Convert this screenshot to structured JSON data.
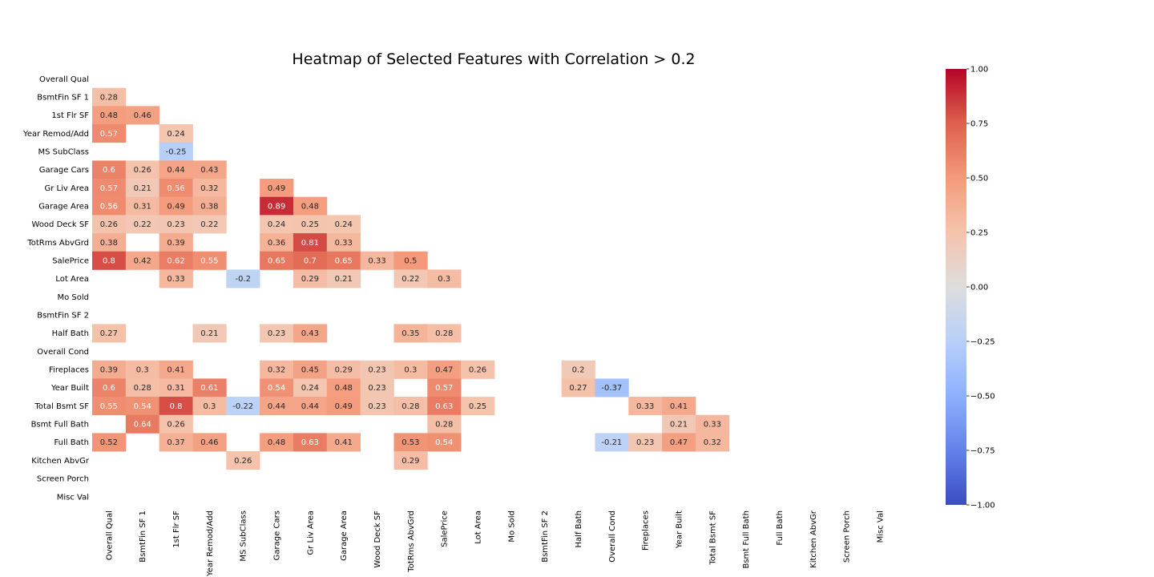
{
  "chart_data": {
    "type": "heatmap",
    "title": "Heatmap of Selected Features with Correlation > 0.2",
    "colormap": "coolwarm",
    "vmin": -1.0,
    "vmax": 1.0,
    "mask": "upper-triangle",
    "rows": [
      "Overall Qual",
      "BsmtFin SF 1",
      "1st Flr SF",
      "Year Remod/Add",
      "MS SubClass",
      "Garage Cars",
      "Gr Liv Area",
      "Garage Area",
      "Wood Deck SF",
      "TotRms AbvGrd",
      "SalePrice",
      "Lot Area",
      "Mo Sold",
      "BsmtFin SF 2",
      "Half Bath",
      "Overall Cond",
      "Fireplaces",
      "Year Built",
      "Total Bsmt SF",
      "Bsmt Full Bath",
      "Full Bath",
      "Kitchen AbvGr",
      "Screen Porch",
      "Misc Val"
    ],
    "columns": [
      "Overall Qual",
      "BsmtFin SF 1",
      "1st Flr SF",
      "Year Remod/Add",
      "MS SubClass",
      "Garage Cars",
      "Gr Liv Area",
      "Garage Area",
      "Wood Deck SF",
      "TotRms AbvGrd",
      "SalePrice",
      "Lot Area",
      "Mo Sold",
      "BsmtFin SF 2",
      "Half Bath",
      "Overall Cond",
      "Fireplaces",
      "Year Built",
      "Total Bsmt SF",
      "Bsmt Full Bath",
      "Full Bath",
      "Kitchen AbvGr",
      "Screen Porch",
      "Misc Val"
    ],
    "values": [
      [
        null,
        null,
        null,
        null,
        null,
        null,
        null,
        null,
        null,
        null,
        null,
        null,
        null,
        null,
        null,
        null,
        null,
        null,
        null,
        null,
        null,
        null,
        null,
        null
      ],
      [
        0.28,
        null,
        null,
        null,
        null,
        null,
        null,
        null,
        null,
        null,
        null,
        null,
        null,
        null,
        null,
        null,
        null,
        null,
        null,
        null,
        null,
        null,
        null,
        null
      ],
      [
        0.48,
        0.46,
        null,
        null,
        null,
        null,
        null,
        null,
        null,
        null,
        null,
        null,
        null,
        null,
        null,
        null,
        null,
        null,
        null,
        null,
        null,
        null,
        null,
        null
      ],
      [
        0.57,
        null,
        0.24,
        null,
        null,
        null,
        null,
        null,
        null,
        null,
        null,
        null,
        null,
        null,
        null,
        null,
        null,
        null,
        null,
        null,
        null,
        null,
        null,
        null
      ],
      [
        null,
        null,
        -0.25,
        null,
        null,
        null,
        null,
        null,
        null,
        null,
        null,
        null,
        null,
        null,
        null,
        null,
        null,
        null,
        null,
        null,
        null,
        null,
        null,
        null
      ],
      [
        0.6,
        0.26,
        0.44,
        0.43,
        null,
        null,
        null,
        null,
        null,
        null,
        null,
        null,
        null,
        null,
        null,
        null,
        null,
        null,
        null,
        null,
        null,
        null,
        null,
        null
      ],
      [
        0.57,
        0.21,
        0.56,
        0.32,
        null,
        0.49,
        null,
        null,
        null,
        null,
        null,
        null,
        null,
        null,
        null,
        null,
        null,
        null,
        null,
        null,
        null,
        null,
        null,
        null
      ],
      [
        0.56,
        0.31,
        0.49,
        0.38,
        null,
        0.89,
        0.48,
        null,
        null,
        null,
        null,
        null,
        null,
        null,
        null,
        null,
        null,
        null,
        null,
        null,
        null,
        null,
        null,
        null
      ],
      [
        0.26,
        0.22,
        0.23,
        0.22,
        null,
        0.24,
        0.25,
        0.24,
        null,
        null,
        null,
        null,
        null,
        null,
        null,
        null,
        null,
        null,
        null,
        null,
        null,
        null,
        null,
        null
      ],
      [
        0.38,
        null,
        0.39,
        null,
        null,
        0.36,
        0.81,
        0.33,
        null,
        null,
        null,
        null,
        null,
        null,
        null,
        null,
        null,
        null,
        null,
        null,
        null,
        null,
        null,
        null
      ],
      [
        0.8,
        0.42,
        0.62,
        0.55,
        null,
        0.65,
        0.7,
        0.65,
        0.33,
        0.5,
        null,
        null,
        null,
        null,
        null,
        null,
        null,
        null,
        null,
        null,
        null,
        null,
        null,
        null
      ],
      [
        null,
        null,
        0.33,
        null,
        -0.2,
        null,
        0.29,
        0.21,
        null,
        0.22,
        0.3,
        null,
        null,
        null,
        null,
        null,
        null,
        null,
        null,
        null,
        null,
        null,
        null,
        null
      ],
      [
        null,
        null,
        null,
        null,
        null,
        null,
        null,
        null,
        null,
        null,
        null,
        null,
        null,
        null,
        null,
        null,
        null,
        null,
        null,
        null,
        null,
        null,
        null,
        null
      ],
      [
        null,
        null,
        null,
        null,
        null,
        null,
        null,
        null,
        null,
        null,
        null,
        null,
        null,
        null,
        null,
        null,
        null,
        null,
        null,
        null,
        null,
        null,
        null,
        null
      ],
      [
        0.27,
        null,
        null,
        0.21,
        null,
        0.23,
        0.43,
        null,
        null,
        0.35,
        0.28,
        null,
        null,
        null,
        null,
        null,
        null,
        null,
        null,
        null,
        null,
        null,
        null,
        null
      ],
      [
        null,
        null,
        null,
        null,
        null,
        null,
        null,
        null,
        null,
        null,
        null,
        null,
        null,
        null,
        null,
        null,
        null,
        null,
        null,
        null,
        null,
        null,
        null,
        null
      ],
      [
        0.39,
        0.3,
        0.41,
        null,
        null,
        0.32,
        0.45,
        0.29,
        0.23,
        0.3,
        0.47,
        0.26,
        null,
        null,
        0.2,
        null,
        null,
        null,
        null,
        null,
        null,
        null,
        null,
        null
      ],
      [
        0.6,
        0.28,
        0.31,
        0.61,
        null,
        0.54,
        0.24,
        0.48,
        0.23,
        null,
        0.57,
        null,
        null,
        null,
        0.27,
        -0.37,
        null,
        null,
        null,
        null,
        null,
        null,
        null,
        null
      ],
      [
        0.55,
        0.54,
        0.8,
        0.3,
        -0.22,
        0.44,
        0.44,
        0.49,
        0.23,
        0.28,
        0.63,
        0.25,
        null,
        null,
        null,
        null,
        0.33,
        0.41,
        null,
        null,
        null,
        null,
        null,
        null
      ],
      [
        null,
        0.64,
        0.26,
        null,
        null,
        null,
        null,
        null,
        null,
        null,
        0.28,
        null,
        null,
        null,
        null,
        null,
        null,
        0.21,
        0.33,
        null,
        null,
        null,
        null,
        null
      ],
      [
        0.52,
        null,
        0.37,
        0.46,
        null,
        0.48,
        0.63,
        0.41,
        null,
        0.53,
        0.54,
        null,
        null,
        null,
        null,
        -0.21,
        0.23,
        0.47,
        0.32,
        null,
        null,
        null,
        null,
        null
      ],
      [
        null,
        null,
        null,
        null,
        0.26,
        null,
        null,
        null,
        null,
        0.29,
        null,
        null,
        null,
        null,
        null,
        null,
        null,
        null,
        null,
        null,
        null,
        null,
        null,
        null
      ],
      [
        null,
        null,
        null,
        null,
        null,
        null,
        null,
        null,
        null,
        null,
        null,
        null,
        null,
        null,
        null,
        null,
        null,
        null,
        null,
        null,
        null,
        null,
        null,
        null
      ],
      [
        null,
        null,
        null,
        null,
        null,
        null,
        null,
        null,
        null,
        null,
        null,
        null,
        null,
        null,
        null,
        null,
        null,
        null,
        null,
        null,
        null,
        null,
        null,
        null
      ]
    ],
    "colorbar": {
      "ticks": [
        1.0,
        0.75,
        0.5,
        0.25,
        0.0,
        -0.25,
        -0.5,
        -0.75,
        -1.0
      ],
      "tick_labels": [
        "1.00",
        "0.75",
        "0.50",
        "0.25",
        "0.00",
        "−0.25",
        "−0.50",
        "−0.75",
        "−1.00"
      ]
    }
  }
}
